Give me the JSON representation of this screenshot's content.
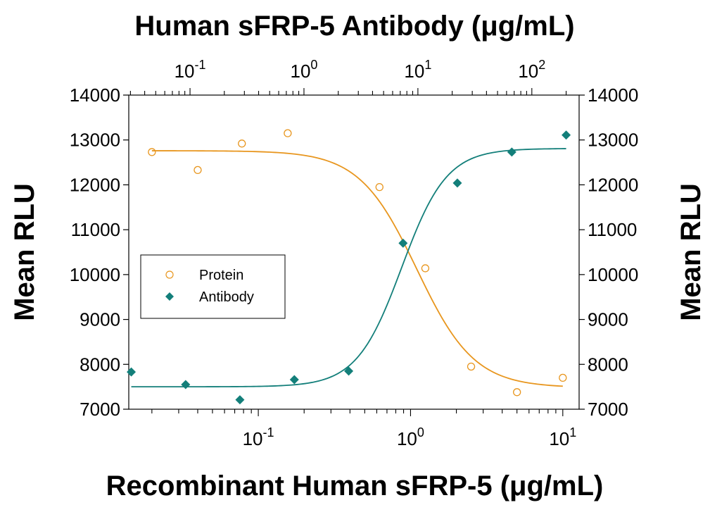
{
  "chart_data": {
    "type": "scatter",
    "title": "Human sFRP-5 Antibody (μg/mL)",
    "xlabel": "Recombinant Human sFRP-5 (μg/mL)",
    "ylabel_left": "Mean RLU",
    "ylabel_right": "Mean RLU",
    "x_scale": "log",
    "x2_scale": "log",
    "xlim": [
      0.0141,
      12.8
    ],
    "x2lim": [
      0.029,
      260
    ],
    "ylim": [
      7000,
      14000
    ],
    "y_ticks": [
      "7000",
      "8000",
      "9000",
      "10000",
      "11000",
      "12000",
      "13000",
      "14000"
    ],
    "x_ticks": [
      {
        "value": 0.1,
        "base": "10",
        "exp": "-1"
      },
      {
        "value": 1,
        "base": "10",
        "exp": "0"
      },
      {
        "value": 10,
        "base": "10",
        "exp": "1"
      }
    ],
    "x2_ticks": [
      {
        "value": 0.1,
        "base": "10",
        "exp": "-1"
      },
      {
        "value": 1,
        "base": "10",
        "exp": "0"
      },
      {
        "value": 10,
        "base": "10",
        "exp": "1"
      },
      {
        "value": 100,
        "base": "10",
        "exp": "2"
      }
    ],
    "legend": {
      "position": "middle-left"
    },
    "series": [
      {
        "name": "Protein",
        "axis": "bottom",
        "marker": "open-circle",
        "color": "#E8961E",
        "points": [
          {
            "x": 0.02,
            "y": 12730
          },
          {
            "x": 0.04,
            "y": 12330
          },
          {
            "x": 0.078,
            "y": 12920
          },
          {
            "x": 0.156,
            "y": 13150
          },
          {
            "x": 0.625,
            "y": 11950
          },
          {
            "x": 1.25,
            "y": 10140
          },
          {
            "x": 2.5,
            "y": 7950
          },
          {
            "x": 5.0,
            "y": 7380
          },
          {
            "x": 10.0,
            "y": 7700
          }
        ],
        "fit": {
          "bottom": 7480,
          "top": 12760,
          "ec50": 1.1,
          "hill": -2.3
        }
      },
      {
        "name": "Antibody",
        "axis": "top",
        "marker": "filled-diamond",
        "color": "#137F7A",
        "points": [
          {
            "x": 0.0305,
            "y": 7830
          },
          {
            "x": 0.0915,
            "y": 7550
          },
          {
            "x": 0.274,
            "y": 7210
          },
          {
            "x": 0.823,
            "y": 7660
          },
          {
            "x": 2.47,
            "y": 7850
          },
          {
            "x": 7.41,
            "y": 10700
          },
          {
            "x": 22.2,
            "y": 12040
          },
          {
            "x": 66.7,
            "y": 12730
          },
          {
            "x": 200,
            "y": 13110
          }
        ],
        "fit": {
          "bottom": 7500,
          "top": 12810,
          "ec50": 7.2,
          "hill": 2.2
        }
      }
    ]
  }
}
